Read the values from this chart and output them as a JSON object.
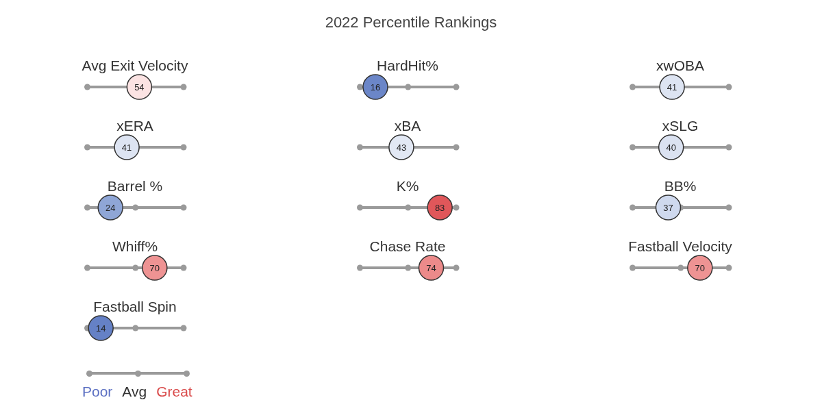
{
  "chart_data": {
    "type": "other",
    "title": "2022 Percentile Rankings",
    "categories": [
      "Avg Exit Velocity",
      "HardHit%",
      "xwOBA",
      "xERA",
      "xBA",
      "xSLG",
      "Barrel %",
      "K%",
      "BB%",
      "Whiff%",
      "Chase Rate",
      "Fastball Velocity",
      "Fastball Spin"
    ],
    "values": [
      54,
      16,
      41,
      41,
      43,
      40,
      24,
      83,
      37,
      70,
      74,
      70,
      14
    ],
    "colors": [
      "#fbe3e3",
      "#6b86c8",
      "#dde4f2",
      "#dde4f2",
      "#e2e8f4",
      "#dbe2f1",
      "#8fa6d6",
      "#e0575a",
      "#cfd9ee",
      "#ee9393",
      "#ec8a8a",
      "#ee9393",
      "#6581c6"
    ],
    "data_labels": true,
    "annotations": [
      "Poor",
      "Avg",
      "Great"
    ]
  }
}
